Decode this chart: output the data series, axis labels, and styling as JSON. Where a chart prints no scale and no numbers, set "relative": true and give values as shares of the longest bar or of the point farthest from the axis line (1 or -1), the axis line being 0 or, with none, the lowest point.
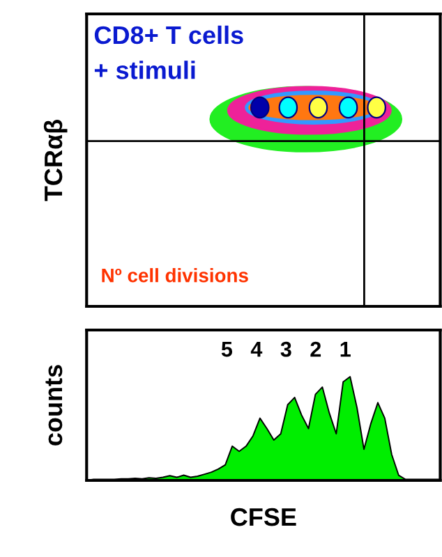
{
  "chart_data": [
    {
      "type": "other",
      "ylabel": "TCRαβ",
      "annotations": [
        "CD8+ T cells",
        "+ stimuli",
        "Nº cell divisions"
      ]
    },
    {
      "type": "area",
      "relative": true,
      "color": "#00ee00",
      "ylabel": "counts",
      "xlabel": "CFSE",
      "annotations": [
        "5   4   3   2   1"
      ],
      "categories": [
        null,
        null,
        null,
        null,
        null,
        null,
        null,
        null,
        null,
        null,
        null,
        null,
        null,
        null,
        null,
        null,
        null,
        null,
        null,
        null,
        null,
        null,
        null,
        null,
        null,
        null,
        null,
        null,
        null,
        null,
        null,
        null,
        null,
        null,
        null,
        null,
        null,
        null,
        null,
        null,
        null,
        null,
        null,
        null,
        null,
        null,
        null,
        null,
        null,
        null,
        null,
        null
      ],
      "values": [
        0.0,
        0.01,
        0.01,
        0.01,
        0.01,
        0.015,
        0.015,
        0.02,
        0.015,
        0.025,
        0.02,
        0.03,
        0.045,
        0.03,
        0.05,
        0.03,
        0.04,
        0.06,
        0.08,
        0.11,
        0.15,
        0.33,
        0.28,
        0.33,
        0.43,
        0.6,
        0.5,
        0.39,
        0.45,
        0.73,
        0.8,
        0.63,
        0.5,
        0.83,
        0.9,
        0.65,
        0.45,
        0.95,
        1.0,
        0.7,
        0.3,
        0.55,
        0.75,
        0.6,
        0.25,
        0.05,
        0.01,
        0.01,
        0.01,
        0.01,
        0.01,
        0.01
      ]
    }
  ]
}
